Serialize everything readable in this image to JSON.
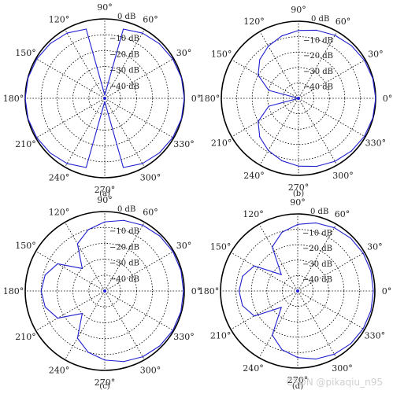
{
  "colors": {
    "trace": "#1f1fd0",
    "axis": "#000000",
    "grid": "#000000"
  },
  "watermark": "CSDN @pikaqiu_n95",
  "chart_data": [
    {
      "type": "polar",
      "caption": "(a)",
      "angle_labels": [
        "0°",
        "30°",
        "60°",
        "90°",
        "120°",
        "150°",
        "180°",
        "210°",
        "240°",
        "270°",
        "300°",
        "330°"
      ],
      "radial_labels": [
        "0 dB",
        "−10 dB",
        "−20 dB",
        "−30 dB",
        "−40 dB"
      ],
      "rlim_db": [
        -50,
        0
      ],
      "grid": true,
      "series": [
        {
          "angle_deg": [
            0,
            15,
            30,
            45,
            60,
            75,
            90,
            105,
            120,
            135,
            150,
            165,
            180,
            195,
            210,
            225,
            240,
            255,
            270,
            285,
            300,
            315,
            330,
            345,
            360
          ],
          "gain_db": [
            0,
            -0.1,
            -0.6,
            -1.4,
            -2.6,
            -4.9,
            -48,
            -4.9,
            -2.6,
            -1.4,
            -0.6,
            -0.1,
            0,
            -0.1,
            -0.6,
            -1.4,
            -2.6,
            -4.9,
            -48,
            -4.9,
            -2.6,
            -1.4,
            -0.6,
            -0.1,
            0
          ]
        }
      ]
    },
    {
      "type": "polar",
      "caption": "(b)",
      "angle_labels": [
        "0°",
        "30°",
        "60°",
        "90°",
        "120°",
        "150°",
        "180°",
        "210°",
        "240°",
        "270°",
        "300°",
        "330°"
      ],
      "radial_labels": [
        "0 dB",
        "−10 dB",
        "−20 dB",
        "−30 dB",
        "−40 dB"
      ],
      "rlim_db": [
        -50,
        0
      ],
      "grid": true,
      "series": [
        {
          "angle_deg": [
            0,
            15,
            30,
            45,
            60,
            75,
            90,
            105,
            120,
            135,
            150,
            165,
            180,
            195,
            210,
            225,
            240,
            255,
            270,
            285,
            300,
            315,
            330,
            345,
            360
          ],
          "gain_db": [
            0,
            -0.2,
            -0.7,
            -1.6,
            -2.8,
            -4.3,
            -6,
            -8.1,
            -10.9,
            -14.5,
            -19.8,
            -30,
            -50,
            -30,
            -19.8,
            -14.5,
            -10.9,
            -8.1,
            -6,
            -4.3,
            -2.8,
            -1.6,
            -0.7,
            -0.2,
            0
          ]
        }
      ]
    },
    {
      "type": "polar",
      "caption": "(c)",
      "angle_labels": [
        "0°",
        "30°",
        "60°",
        "90°",
        "120°",
        "150°",
        "180°",
        "210°",
        "240°",
        "270°",
        "300°",
        "330°"
      ],
      "radial_labels": [
        "0 dB",
        "−10 dB",
        "−20 dB",
        "−30 dB",
        "−40 dB"
      ],
      "rlim_db": [
        -50,
        0
      ],
      "grid": true,
      "series": [
        {
          "angle_deg": [
            0,
            15,
            30,
            45,
            60,
            75,
            90,
            105,
            120,
            135,
            150,
            165,
            180,
            195,
            210,
            225,
            240,
            255,
            270,
            285,
            300,
            315,
            330,
            345,
            360
          ],
          "gain_db": [
            -0.5,
            -0.4,
            -0.5,
            -1.1,
            -2.2,
            -4,
            -6.5,
            -10,
            -15.7,
            -30,
            -15.8,
            -11.2,
            -10,
            -11.2,
            -15.8,
            -30,
            -15.7,
            -10,
            -6.5,
            -4,
            -2.2,
            -1.1,
            -0.5,
            -0.4,
            -0.5
          ]
        }
      ]
    },
    {
      "type": "polar",
      "caption": "(d)",
      "angle_labels": [
        "0°",
        "30°",
        "60°",
        "90°",
        "120°",
        "150°",
        "180°",
        "210°",
        "240°",
        "270°",
        "300°",
        "330°"
      ],
      "radial_labels": [
        "0 dB",
        "−10 dB",
        "−20 dB",
        "−30 dB",
        "−40 dB"
      ],
      "rlim_db": [
        -50,
        0
      ],
      "grid": true,
      "series": [
        {
          "angle_deg": [
            0,
            15,
            30,
            45,
            60,
            75,
            90,
            105,
            120,
            135,
            150,
            165,
            180,
            195,
            210,
            225,
            240,
            255,
            270,
            285,
            300,
            315,
            330,
            345,
            360
          ],
          "gain_db": [
            -1,
            -0.9,
            -1,
            -1.5,
            -2.6,
            -4.3,
            -6.8,
            -10.6,
            -17,
            -35,
            -17.5,
            -13,
            -12,
            -13,
            -17.5,
            -35,
            -17,
            -10.6,
            -6.8,
            -4.3,
            -2.6,
            -1.5,
            -1,
            -0.9,
            -1
          ]
        }
      ]
    }
  ]
}
